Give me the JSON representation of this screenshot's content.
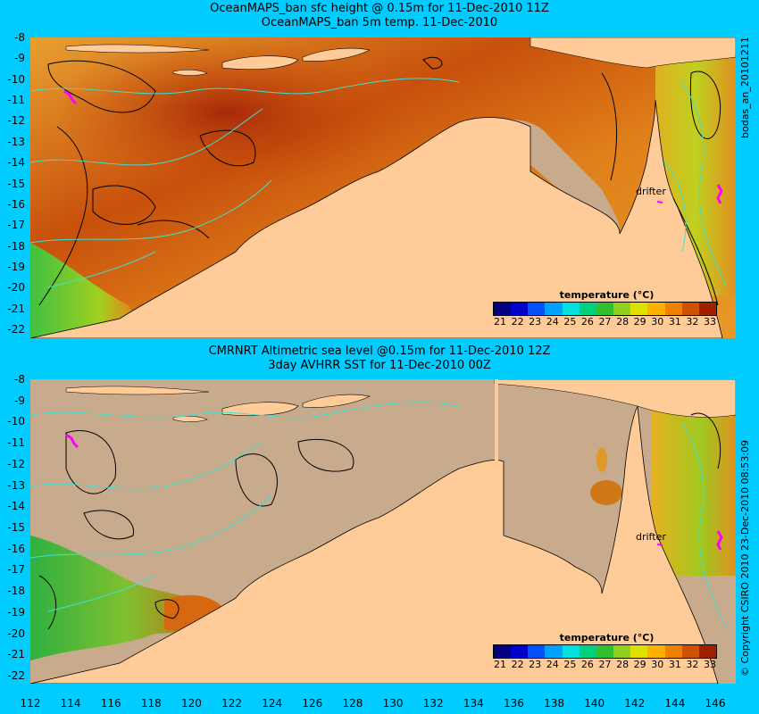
{
  "panel1": {
    "title_line1": "OceanMAPS_ban sfc height @ 0.15m for 11-Dec-2010 11Z",
    "title_line2": "OceanMAPS_ban 5m temp. 11-Dec-2010",
    "side_label": "bodas_an_20101211",
    "drifter_label": "drifter"
  },
  "panel2": {
    "title_line1": "CMRNRT Altimetric sea level  @0.15m  for 11-Dec-2010 12Z",
    "title_line2": "3day AVHRR SST for 11-Dec-2010 00Z",
    "side_label": "© Copyright CSIRO 2010   23-Dec-2010 08:53:09",
    "drifter_label": "drifter"
  },
  "legend": {
    "title": "temperature (°C)",
    "labels": [
      "21",
      "22",
      "23",
      "24",
      "25",
      "26",
      "27",
      "28",
      "29",
      "30",
      "31",
      "32",
      "33"
    ],
    "colors": [
      "#000080",
      "#0000cd",
      "#0050ff",
      "#00a0ff",
      "#00e0e0",
      "#00d080",
      "#30c030",
      "#90d020",
      "#e0e000",
      "#ffb000",
      "#f08000",
      "#d05000",
      "#a02000"
    ]
  },
  "y_ticks": [
    "-8",
    "-9",
    "-10",
    "-11",
    "-12",
    "-13",
    "-14",
    "-15",
    "-16",
    "-17",
    "-18",
    "-19",
    "-20",
    "-21",
    "-22"
  ],
  "x_ticks": [
    "112",
    "114",
    "116",
    "118",
    "120",
    "122",
    "124",
    "126",
    "128",
    "130",
    "132",
    "134",
    "136",
    "138",
    "140",
    "142",
    "144",
    "146"
  ],
  "colors": {
    "background": "#00ccff",
    "land": "#ffcc99",
    "no_data": "#c8aa8c",
    "ocean_warm": "#e07a10",
    "contour_cyan": "#40e0d0",
    "drifter": "#ff00ff"
  }
}
